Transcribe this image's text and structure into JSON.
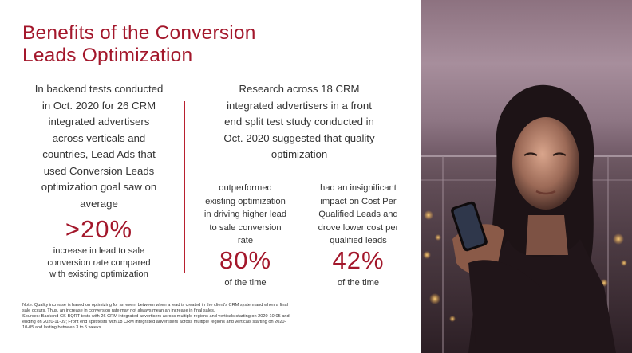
{
  "title": {
    "line1": "Benefits of the Conversion",
    "line2": "Leads Optimization"
  },
  "backend": {
    "lines": [
      "In backend tests conducted",
      "in Oct. 2020 for 26 CRM",
      "integrated advertisers",
      "across verticals and",
      "countries, Lead Ads that",
      "used Conversion Leads",
      "optimization goal saw on",
      "average"
    ],
    "stat": ">20%",
    "stat_desc": [
      "increase in lead to sale",
      "conversion rate compared",
      "with existing optimization"
    ]
  },
  "research": {
    "lines": [
      "Research across 18 CRM",
      "integrated advertisers in a front",
      "end split test study conducted in",
      "Oct. 2020 suggested that quality",
      "optimization"
    ],
    "stats": [
      {
        "desc": [
          "outperformed",
          "existing optimization",
          "in driving higher lead",
          "to sale conversion",
          "rate"
        ],
        "value": "80%",
        "time": "of the time"
      },
      {
        "desc": [
          "had an insignificant",
          "impact on Cost Per",
          "Qualified Leads and",
          "drove lower cost per",
          "qualified leads"
        ],
        "value": "42%",
        "time": "of the time"
      }
    ]
  },
  "note": [
    "Note: Quality increase is based on optimizing for an event between when a lead is created in the client's CRM system and when a final",
    "sale occurs. Thus, an increase in conversion rate may not always mean an increase in final sales.",
    "Sources: Backend CS-BQRT tests with 26 CRM integrated advertisers across multiple regions and verticals starting on 2020-10-05 and",
    "ending on 2020-11-09; Front end split tests with 18 CRM integrated advertisers across multiple regions and verticals starting on 2020-",
    "10-05 and lasting between 3 to 5 weeks."
  ],
  "colors": {
    "accent": "#a3172b",
    "text": "#333333",
    "background": "#ffffff"
  },
  "photo": {
    "icon": "woman-using-phone-photo"
  }
}
